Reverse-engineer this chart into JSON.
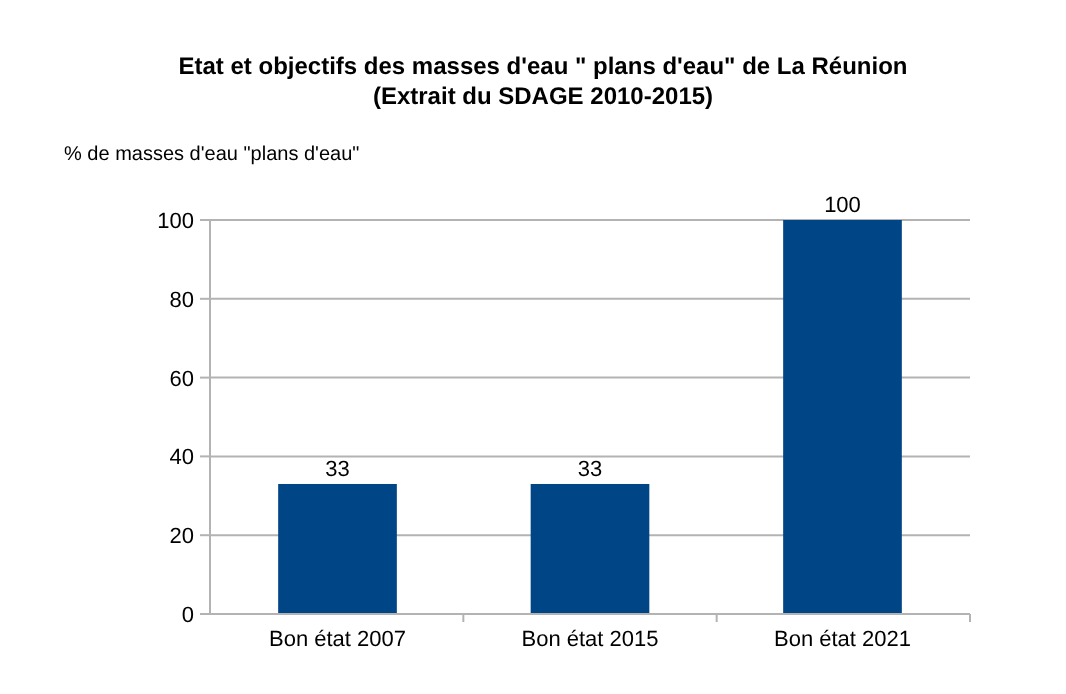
{
  "chart_data": {
    "type": "bar",
    "title": "Etat et objectifs des masses d'eau \" plans d'eau\" de La Réunion",
    "subtitle": "(Extrait du SDAGE 2010-2015)",
    "ylabel": "% de masses d'eau \"plans d'eau\"",
    "categories": [
      "Bon état 2007",
      "Bon état 2015",
      "Bon état 2021"
    ],
    "values": [
      33,
      33,
      100
    ],
    "color": "#004586",
    "ylim": [
      0,
      100
    ],
    "yticks": [
      0,
      20,
      40,
      60,
      80,
      100
    ],
    "grid": "y",
    "data_labels": true
  }
}
